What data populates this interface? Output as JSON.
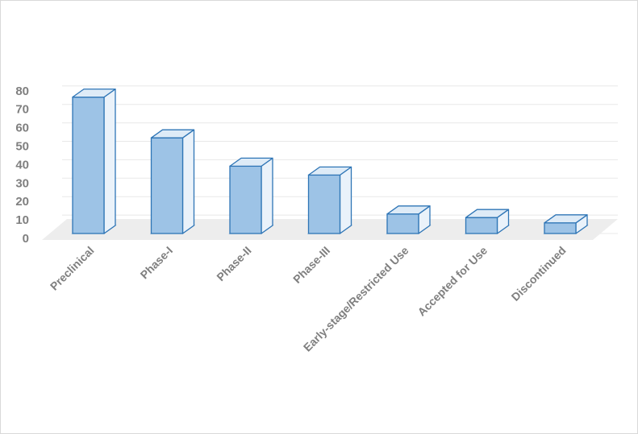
{
  "chart_data": {
    "type": "bar",
    "style": "3d-column",
    "categories": [
      "Preclinical",
      "Phase-I",
      "Phase-II",
      "Phase-III",
      "Early-stage/Restricted Use",
      "Accepted for Use",
      "Discontinued"
    ],
    "values": [
      77,
      54,
      38,
      33,
      11,
      9,
      6
    ],
    "ylim": [
      0,
      80
    ],
    "yticks": [
      0,
      10,
      20,
      30,
      40,
      50,
      60,
      70,
      80
    ],
    "grid": true,
    "legend": "none",
    "colors": {
      "bar_fill": "#9dc3e6",
      "bar_top": "#deebf7",
      "bar_side": "#eaf2fa",
      "bar_edge": "#2e75b6",
      "floor": "#ededed",
      "grid": "#e8e8e8",
      "text": "#7f7f7f"
    }
  }
}
